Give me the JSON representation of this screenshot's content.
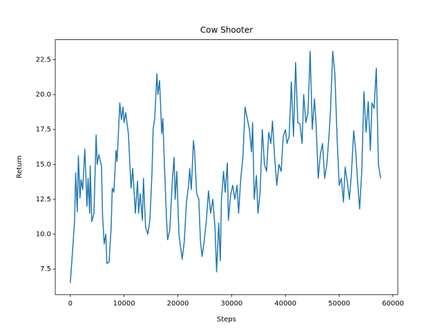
{
  "chart_data": {
    "type": "line",
    "title": "Cow Shooter",
    "x_label": "Steps",
    "y_label": "Return",
    "x": [
      0,
      400,
      800,
      1000,
      1300,
      1500,
      1800,
      2000,
      2300,
      2700,
      3100,
      3300,
      3600,
      3700,
      4000,
      4400,
      4800,
      5000,
      5300,
      5800,
      6000,
      6300,
      6600,
      6800,
      7200,
      7600,
      7800,
      8100,
      8500,
      8700,
      9200,
      9500,
      9800,
      10000,
      10300,
      10800,
      11300,
      11600,
      12100,
      12500,
      12700,
      13000,
      13400,
      13600,
      14000,
      14400,
      14800,
      15200,
      15400,
      15700,
      16100,
      16300,
      16600,
      17000,
      17200,
      17500,
      17900,
      18100,
      18500,
      19000,
      19300,
      19500,
      19800,
      20200,
      20600,
      20800,
      21200,
      21600,
      22000,
      22200,
      22500,
      22900,
      23100,
      23500,
      23900,
      24200,
      24500,
      24900,
      25300,
      25700,
      26100,
      26500,
      26900,
      27200,
      27600,
      27900,
      28100,
      28500,
      28800,
      29200,
      29400,
      29800,
      30200,
      30600,
      31000,
      31300,
      31700,
      32100,
      32500,
      32900,
      33300,
      33700,
      33900,
      34200,
      34600,
      34900,
      35300,
      35700,
      36100,
      36500,
      36900,
      37300,
      37600,
      38000,
      38400,
      38800,
      39200,
      39600,
      40000,
      40300,
      40700,
      41100,
      41500,
      41900,
      42300,
      42700,
      43100,
      43400,
      43800,
      44200,
      44600,
      45000,
      45400,
      45700,
      46100,
      46500,
      46900,
      47300,
      47700,
      48100,
      48400,
      48800,
      49200,
      49600,
      50000,
      50400,
      50800,
      51100,
      51500,
      51900,
      52300,
      52700,
      53100,
      53400,
      53800,
      54200,
      54600,
      55000,
      55400,
      55800,
      56100,
      56500,
      56900,
      57300,
      57700
    ],
    "series": [
      {
        "color": "#1f77b4",
        "values": [
          6.5,
          8.7,
          11,
          14.4,
          11.6,
          15.6,
          12.6,
          13.9,
          13.2,
          16.1,
          12,
          14,
          11.5,
          14.9,
          10.9,
          11.5,
          17.1,
          15,
          15.7,
          14.9,
          11.3,
          9.3,
          10,
          7.9,
          8,
          10.5,
          13.3,
          13,
          16,
          15.2,
          19.4,
          18.2,
          19.1,
          18,
          18.7,
          17.2,
          13.3,
          14.7,
          11.5,
          13.8,
          11.5,
          12.9,
          11,
          14,
          10.5,
          10,
          11,
          14.5,
          17.5,
          18.3,
          21.5,
          20,
          21,
          17.2,
          18.3,
          15,
          11,
          9.6,
          10.3,
          14,
          15.5,
          12.5,
          14.5,
          10,
          8.8,
          8.2,
          9.5,
          12.3,
          13.5,
          14.7,
          13.2,
          16.7,
          16,
          12.9,
          12.5,
          9.5,
          8.4,
          9.5,
          11,
          13.1,
          11.5,
          12.5,
          10.5,
          7.3,
          10.8,
          8.1,
          12.5,
          14.5,
          13,
          15.1,
          11,
          12.8,
          13.5,
          12.5,
          13.5,
          11.5,
          14,
          15.5,
          19.1,
          18.3,
          17.5,
          15.9,
          18,
          12.5,
          14.2,
          11.5,
          13,
          17.5,
          15,
          14.5,
          17.3,
          16.5,
          18.1,
          15.5,
          13.5,
          15,
          14.5,
          17,
          17.5,
          16.5,
          17,
          20.9,
          17,
          22.3,
          18,
          17.9,
          16.5,
          20,
          18,
          18.7,
          23.1,
          17.5,
          19.7,
          17.9,
          14,
          15.7,
          16.5,
          14,
          15,
          17,
          19,
          23.1,
          21.5,
          17,
          13.5,
          14,
          12.3,
          14.8,
          13.8,
          12.5,
          14.5,
          17.4,
          15.8,
          13.9,
          11.8,
          14.5,
          20.2,
          17.3,
          19.5,
          16,
          19.4,
          19,
          21.9,
          15,
          14
        ]
      }
    ],
    "xlim": [
      -2800,
      60900
    ],
    "ylim": [
      5.67,
      23.93
    ],
    "xticks": [
      0,
      10000,
      20000,
      30000,
      40000,
      50000,
      60000
    ],
    "yticks": [
      7.5,
      {
        "value": 10,
        "label": "10.0"
      },
      12.5,
      {
        "value": 15,
        "label": "15.0"
      },
      17.5,
      {
        "value": 20,
        "label": "20.0"
      },
      22.5
    ]
  }
}
